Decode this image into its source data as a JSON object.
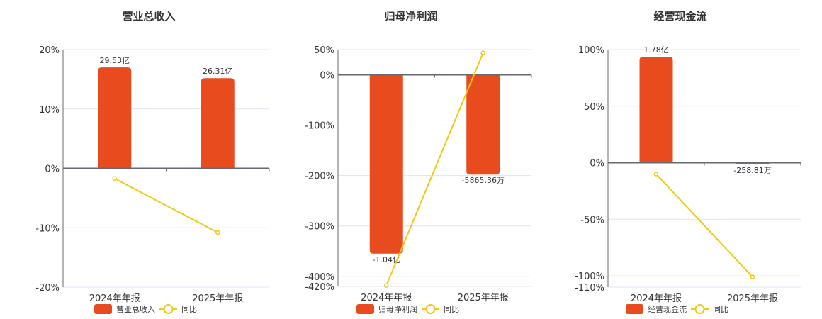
{
  "colors": {
    "bar": "#e84c1e",
    "line": "#f2c811",
    "grid": "#dfe6f0",
    "axis": "#666a73",
    "separator": "#b8b8b8"
  },
  "chart_data": [
    {
      "type": "bar+line",
      "title": "营业总收入",
      "categories": [
        "2024年年报",
        "2025年年报"
      ],
      "series": [
        {
          "name": "营业总收入",
          "kind": "bar",
          "values_pct_axis": [
            17.0,
            15.2
          ],
          "labels": [
            "29.53亿",
            "26.31亿"
          ]
        },
        {
          "name": "同比",
          "kind": "line",
          "values": [
            -1.7,
            -10.8
          ]
        }
      ],
      "yticks": [
        "20%",
        "10%",
        "0%",
        "-10%",
        "-20%"
      ],
      "ytick_values": [
        20,
        10,
        0,
        -10,
        -20
      ],
      "ylim": [
        -20,
        20
      ],
      "legend": [
        "营业总收入",
        "同比"
      ],
      "legend_position": "bottom"
    },
    {
      "type": "bar+line",
      "title": "归母净利润",
      "categories": [
        "2024年年报",
        "2025年年报"
      ],
      "series": [
        {
          "name": "归母净利润",
          "kind": "bar",
          "values_pct_axis": [
            -355,
            -198
          ],
          "labels": [
            "-1.04亿",
            "-5865.36万"
          ]
        },
        {
          "name": "同比",
          "kind": "line",
          "values": [
            -418,
            43.5
          ]
        }
      ],
      "yticks": [
        "50%",
        "0%",
        "-100%",
        "-200%",
        "-300%",
        "-400%",
        "-420%"
      ],
      "ytick_values": [
        50,
        0,
        -100,
        -200,
        -300,
        -400,
        -420
      ],
      "ylim": [
        -420,
        50
      ],
      "legend": [
        "归母净利润",
        "同比"
      ],
      "legend_position": "bottom"
    },
    {
      "type": "bar+line",
      "title": "经营现金流",
      "categories": [
        "2024年年报",
        "2025年年报"
      ],
      "series": [
        {
          "name": "经营现金流",
          "kind": "bar",
          "values_pct_axis": [
            93.7,
            -1.4
          ],
          "labels": [
            "1.78亿",
            "-258.81万"
          ]
        },
        {
          "name": "同比",
          "kind": "line",
          "values": [
            -10,
            -101
          ]
        }
      ],
      "yticks": [
        "100%",
        "50%",
        "0%",
        "-50%",
        "-100%",
        "-110%"
      ],
      "ytick_values": [
        100,
        50,
        0,
        -50,
        -100,
        -110
      ],
      "ylim": [
        -110,
        100
      ],
      "legend": [
        "经营现金流",
        "同比"
      ],
      "legend_position": "bottom"
    }
  ]
}
